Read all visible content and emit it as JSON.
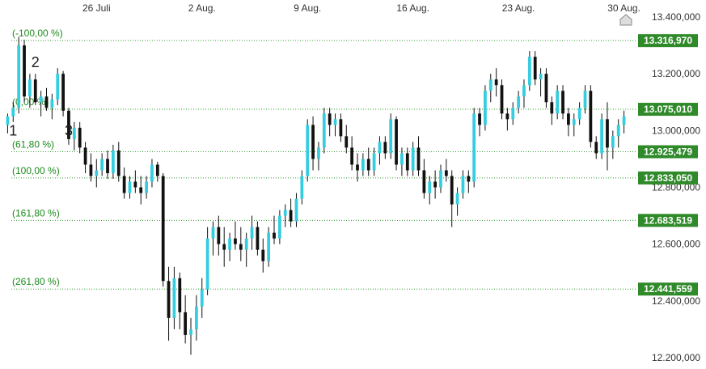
{
  "chart_data": {
    "type": "candlestick",
    "x_axis": {
      "ticks": [
        {
          "label": "26 Juli",
          "index": 16
        },
        {
          "label": "2 Aug.",
          "index": 35
        },
        {
          "label": "9 Aug.",
          "index": 54
        },
        {
          "label": "16 Aug.",
          "index": 73
        },
        {
          "label": "23 Aug.",
          "index": 92
        },
        {
          "label": "30 Aug.",
          "index": 111
        }
      ]
    },
    "y_axis": {
      "ylim": [
        12.16,
        13.46
      ],
      "ticks": [
        {
          "value": 13.4,
          "label": "13.400,000"
        },
        {
          "value": 13.2,
          "label": "13.200,000"
        },
        {
          "value": 13.0,
          "label": "13.000,000"
        },
        {
          "value": 12.8,
          "label": "12.800,000"
        },
        {
          "value": 12.6,
          "label": "12.600,000"
        },
        {
          "value": 12.4,
          "label": "12.400,000"
        },
        {
          "value": 12.2,
          "label": "12.200,000"
        }
      ]
    },
    "fib_levels": [
      {
        "label": "(-100,00 %)",
        "value": 13.31697,
        "badge": "13.316,970"
      },
      {
        "label": "(0,00 %)",
        "value": 13.07501,
        "badge": "13.075,010"
      },
      {
        "label": "(61,80 %)",
        "value": 12.925479,
        "badge": "12.925,479"
      },
      {
        "label": "(100,00 %)",
        "value": 12.83305,
        "badge": "12.833,050"
      },
      {
        "label": "(161,80 %)",
        "value": 12.683519,
        "badge": "12.683,519"
      },
      {
        "label": "(261,80 %)",
        "value": 12.441559,
        "badge": "12.441,559"
      }
    ],
    "wave_labels": [
      {
        "label": "1",
        "index": 1,
        "value": 13.0
      },
      {
        "label": "2",
        "index": 5,
        "value": 13.24
      },
      {
        "label": "3",
        "index": 11,
        "value": 13.0
      }
    ],
    "ohlc": [
      [
        13.02,
        13.06,
        12.99,
        13.05
      ],
      [
        13.05,
        13.1,
        13.03,
        13.08
      ],
      [
        13.08,
        13.33,
        13.06,
        13.3
      ],
      [
        13.3,
        13.32,
        13.1,
        13.12
      ],
      [
        13.12,
        13.2,
        13.08,
        13.18
      ],
      [
        13.18,
        13.2,
        13.09,
        13.1
      ],
      [
        13.1,
        13.14,
        13.05,
        13.12
      ],
      [
        13.12,
        13.15,
        13.07,
        13.08
      ],
      [
        13.08,
        13.13,
        13.04,
        13.11
      ],
      [
        13.11,
        13.22,
        13.09,
        13.2
      ],
      [
        13.2,
        13.21,
        13.05,
        13.07
      ],
      [
        13.07,
        13.08,
        12.95,
        12.97
      ],
      [
        12.97,
        13.03,
        12.93,
        13.01
      ],
      [
        13.01,
        13.03,
        12.92,
        12.94
      ],
      [
        12.94,
        12.96,
        12.85,
        12.88
      ],
      [
        12.88,
        12.92,
        12.82,
        12.84
      ],
      [
        12.84,
        12.9,
        12.8,
        12.86
      ],
      [
        12.86,
        12.92,
        12.84,
        12.9
      ],
      [
        12.9,
        12.93,
        12.83,
        12.85
      ],
      [
        12.85,
        12.95,
        12.83,
        12.93
      ],
      [
        12.93,
        12.96,
        12.82,
        12.84
      ],
      [
        12.84,
        12.87,
        12.76,
        12.78
      ],
      [
        12.78,
        12.84,
        12.76,
        12.82
      ],
      [
        12.82,
        12.86,
        12.78,
        12.8
      ],
      [
        12.8,
        12.84,
        12.74,
        12.78
      ],
      [
        12.78,
        12.84,
        12.76,
        12.82
      ],
      [
        12.82,
        12.9,
        12.8,
        12.88
      ],
      [
        12.88,
        12.89,
        12.82,
        12.84
      ],
      [
        12.84,
        12.85,
        12.45,
        12.47
      ],
      [
        12.47,
        12.52,
        12.26,
        12.34
      ],
      [
        12.34,
        12.52,
        12.3,
        12.48
      ],
      [
        12.48,
        12.5,
        12.3,
        12.36
      ],
      [
        12.36,
        12.42,
        12.25,
        12.28
      ],
      [
        12.28,
        12.34,
        12.21,
        12.3
      ],
      [
        12.3,
        12.42,
        12.26,
        12.38
      ],
      [
        12.38,
        12.48,
        12.34,
        12.44
      ],
      [
        12.44,
        12.66,
        12.42,
        12.62
      ],
      [
        12.62,
        12.68,
        12.56,
        12.66
      ],
      [
        12.66,
        12.7,
        12.56,
        12.6
      ],
      [
        12.6,
        12.66,
        12.52,
        12.58
      ],
      [
        12.58,
        12.64,
        12.54,
        12.62
      ],
      [
        12.62,
        12.68,
        12.58,
        12.6
      ],
      [
        12.6,
        12.66,
        12.54,
        12.58
      ],
      [
        12.58,
        12.64,
        12.52,
        12.62
      ],
      [
        12.62,
        12.7,
        12.58,
        12.66
      ],
      [
        12.66,
        12.68,
        12.56,
        12.58
      ],
      [
        12.58,
        12.62,
        12.5,
        12.54
      ],
      [
        12.54,
        12.66,
        12.52,
        12.64
      ],
      [
        12.64,
        12.7,
        12.6,
        12.62
      ],
      [
        12.62,
        12.72,
        12.6,
        12.7
      ],
      [
        12.7,
        12.74,
        12.66,
        12.72
      ],
      [
        12.72,
        12.76,
        12.66,
        12.68
      ],
      [
        12.68,
        12.78,
        12.66,
        12.76
      ],
      [
        12.76,
        12.86,
        12.74,
        12.84
      ],
      [
        12.84,
        13.04,
        12.82,
        13.02
      ],
      [
        13.02,
        13.05,
        12.86,
        12.9
      ],
      [
        12.9,
        12.96,
        12.86,
        12.94
      ],
      [
        12.94,
        13.08,
        12.92,
        13.06
      ],
      [
        13.06,
        13.08,
        12.98,
        13.02
      ],
      [
        13.02,
        13.06,
        12.98,
        13.04
      ],
      [
        13.04,
        13.06,
        12.96,
        12.98
      ],
      [
        12.98,
        13.02,
        12.92,
        12.94
      ],
      [
        12.94,
        12.98,
        12.86,
        12.88
      ],
      [
        12.88,
        12.92,
        12.82,
        12.86
      ],
      [
        12.86,
        12.92,
        12.84,
        12.9
      ],
      [
        12.9,
        12.94,
        12.84,
        12.86
      ],
      [
        12.86,
        12.94,
        12.84,
        12.92
      ],
      [
        12.92,
        12.98,
        12.88,
        12.96
      ],
      [
        12.96,
        12.98,
        12.9,
        12.92
      ],
      [
        12.92,
        13.06,
        12.9,
        13.04
      ],
      [
        13.04,
        13.05,
        12.86,
        12.88
      ],
      [
        12.88,
        12.94,
        12.84,
        12.92
      ],
      [
        12.92,
        12.94,
        12.84,
        12.86
      ],
      [
        12.86,
        12.96,
        12.84,
        12.94
      ],
      [
        12.94,
        12.98,
        12.84,
        12.86
      ],
      [
        12.86,
        12.9,
        12.76,
        12.78
      ],
      [
        12.78,
        12.84,
        12.74,
        12.82
      ],
      [
        12.82,
        12.86,
        12.76,
        12.8
      ],
      [
        12.8,
        12.88,
        12.78,
        12.86
      ],
      [
        12.86,
        12.9,
        12.82,
        12.84
      ],
      [
        12.84,
        12.86,
        12.66,
        12.74
      ],
      [
        12.74,
        12.8,
        12.7,
        12.78
      ],
      [
        12.78,
        12.86,
        12.76,
        12.84
      ],
      [
        12.84,
        12.86,
        12.78,
        12.82
      ],
      [
        12.82,
        13.08,
        12.8,
        13.06
      ],
      [
        13.06,
        13.08,
        12.98,
        13.02
      ],
      [
        13.02,
        13.16,
        13.0,
        13.14
      ],
      [
        13.14,
        13.2,
        13.1,
        13.18
      ],
      [
        13.18,
        13.22,
        13.12,
        13.16
      ],
      [
        13.16,
        13.18,
        13.04,
        13.06
      ],
      [
        13.06,
        13.08,
        13.0,
        13.04
      ],
      [
        13.04,
        13.1,
        13.02,
        13.08
      ],
      [
        13.08,
        13.14,
        13.06,
        13.12
      ],
      [
        13.12,
        13.18,
        13.08,
        13.16
      ],
      [
        13.16,
        13.28,
        13.14,
        13.26
      ],
      [
        13.26,
        13.28,
        13.16,
        13.18
      ],
      [
        13.18,
        13.22,
        13.12,
        13.2
      ],
      [
        13.2,
        13.22,
        13.08,
        13.1
      ],
      [
        13.1,
        13.12,
        13.02,
        13.06
      ],
      [
        13.06,
        13.16,
        13.04,
        13.14
      ],
      [
        13.14,
        13.16,
        13.04,
        13.06
      ],
      [
        13.06,
        13.08,
        12.98,
        13.02
      ],
      [
        13.02,
        13.06,
        12.98,
        13.04
      ],
      [
        13.04,
        13.1,
        13.02,
        13.08
      ],
      [
        13.08,
        13.16,
        13.06,
        13.14
      ],
      [
        13.14,
        13.16,
        12.94,
        12.96
      ],
      [
        12.96,
        12.98,
        12.9,
        12.92
      ],
      [
        12.92,
        13.06,
        12.9,
        13.04
      ],
      [
        13.04,
        13.1,
        12.86,
        12.94
      ],
      [
        12.94,
        13.0,
        12.9,
        12.98
      ],
      [
        12.98,
        13.04,
        12.94,
        13.02
      ],
      [
        13.02,
        13.07,
        12.99,
        13.05
      ]
    ],
    "colors": {
      "up": "#35cde0",
      "down": "#111111",
      "fib_line": "#2e9d2e",
      "badge_bg": "#2f8a2a",
      "tick_text": "#333333"
    }
  }
}
